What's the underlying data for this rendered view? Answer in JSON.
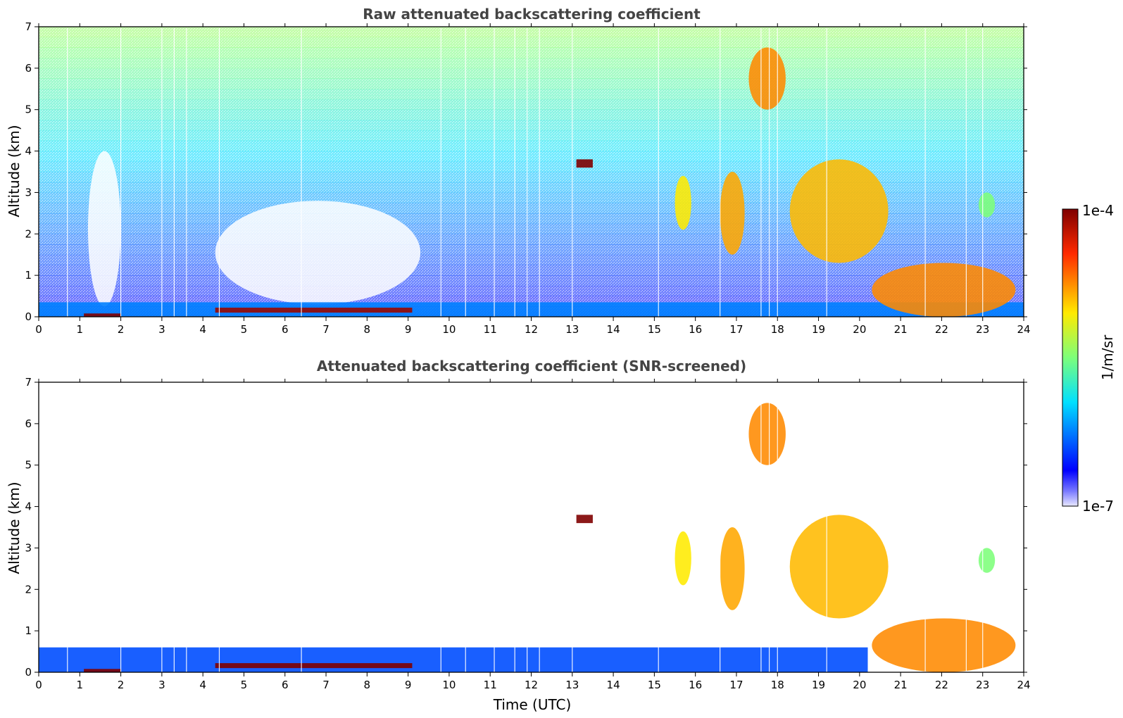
{
  "chart_data": [
    {
      "type": "heatmap",
      "title": "Raw attenuated backscattering coefficient",
      "xlabel": "",
      "ylabel": "Altitude (km)",
      "xlim": [
        0,
        24
      ],
      "ylim": [
        0,
        7
      ],
      "x_ticks": [
        "0",
        "1",
        "2",
        "3",
        "4",
        "5",
        "6",
        "7",
        "8",
        "9",
        "10",
        "11",
        "12",
        "13",
        "14",
        "15",
        "16",
        "17",
        "18",
        "19",
        "20",
        "21",
        "22",
        "23",
        "24"
      ],
      "y_ticks": [
        "0",
        "1",
        "2",
        "3",
        "4",
        "5",
        "6",
        "7"
      ],
      "features": [
        {
          "name": "surface aerosol layer",
          "x": [
            0,
            24
          ],
          "y": [
            0,
            0.35
          ],
          "level": 0.25
        },
        {
          "name": "strong layer 1",
          "x": [
            1.1,
            2.0
          ],
          "y": [
            0.0,
            0.08
          ],
          "level": 1.0
        },
        {
          "name": "strong layer 2",
          "x": [
            4.3,
            9.1
          ],
          "y": [
            0.1,
            0.22
          ],
          "level": 0.97
        },
        {
          "name": "cloud 13h",
          "x": [
            13.1,
            13.5
          ],
          "y": [
            3.6,
            3.8
          ],
          "level": 1.0
        },
        {
          "name": "cloud 15.5h",
          "x": [
            15.5,
            15.9
          ],
          "y": [
            2.1,
            3.4
          ],
          "level": 0.65
        },
        {
          "name": "cloud 17h",
          "x": [
            16.6,
            17.2
          ],
          "y": [
            1.5,
            3.5
          ],
          "level": 0.72
        },
        {
          "name": "cloud 17.5-18.2h",
          "x": [
            17.3,
            18.2
          ],
          "y": [
            5.0,
            6.5
          ],
          "level": 0.75
        },
        {
          "name": "cloud 18-20.5h",
          "x": [
            18.3,
            20.7
          ],
          "y": [
            1.3,
            3.8
          ],
          "level": 0.7
        },
        {
          "name": "boundary layer 21-24h",
          "x": [
            20.3,
            23.8
          ],
          "y": [
            0,
            1.3
          ],
          "level": 0.75
        },
        {
          "name": "cloud 23h",
          "x": [
            22.9,
            23.3
          ],
          "y": [
            2.4,
            3.0
          ],
          "level": 0.5
        }
      ]
    },
    {
      "type": "heatmap",
      "title": "Attenuated backscattering coefficient (SNR-screened)",
      "xlabel": "Time (UTC)",
      "ylabel": "Altitude (km)",
      "xlim": [
        0,
        24
      ],
      "ylim": [
        0,
        7
      ],
      "x_ticks": [
        "0",
        "1",
        "2",
        "3",
        "4",
        "5",
        "6",
        "7",
        "8",
        "9",
        "10",
        "11",
        "12",
        "13",
        "14",
        "15",
        "16",
        "17",
        "18",
        "19",
        "20",
        "21",
        "22",
        "23",
        "24"
      ],
      "y_ticks": [
        "0",
        "1",
        "2",
        "3",
        "4",
        "5",
        "6",
        "7"
      ],
      "features": [
        {
          "name": "surface aerosol layer",
          "x": [
            0,
            20.2
          ],
          "y": [
            0,
            0.6
          ],
          "level": 0.2
        },
        {
          "name": "strong layer 1",
          "x": [
            1.1,
            2.0
          ],
          "y": [
            0.0,
            0.08
          ],
          "level": 1.0
        },
        {
          "name": "strong layer 2",
          "x": [
            4.3,
            9.1
          ],
          "y": [
            0.1,
            0.22
          ],
          "level": 1.0
        },
        {
          "name": "cloud 13h",
          "x": [
            13.1,
            13.5
          ],
          "y": [
            3.6,
            3.8
          ],
          "level": 1.0
        },
        {
          "name": "cloud 15.5h",
          "x": [
            15.5,
            15.9
          ],
          "y": [
            2.1,
            3.4
          ],
          "level": 0.65
        },
        {
          "name": "cloud 17h",
          "x": [
            16.6,
            17.2
          ],
          "y": [
            1.5,
            3.5
          ],
          "level": 0.72
        },
        {
          "name": "cloud 17.5-18.2h",
          "x": [
            17.3,
            18.2
          ],
          "y": [
            5.0,
            6.5
          ],
          "level": 0.75
        },
        {
          "name": "cloud 18-20.5h",
          "x": [
            18.3,
            20.7
          ],
          "y": [
            1.3,
            3.8
          ],
          "level": 0.7
        },
        {
          "name": "boundary layer 21-24h",
          "x": [
            20.3,
            23.8
          ],
          "y": [
            0,
            1.3
          ],
          "level": 0.75
        },
        {
          "name": "cloud 23h",
          "x": [
            22.9,
            23.3
          ],
          "y": [
            2.4,
            3.0
          ],
          "level": 0.5
        }
      ]
    }
  ],
  "colorbar": {
    "label": "1/m/sr",
    "max_label": "1e-4",
    "min_label": "1e-7",
    "colormap": "jet"
  }
}
